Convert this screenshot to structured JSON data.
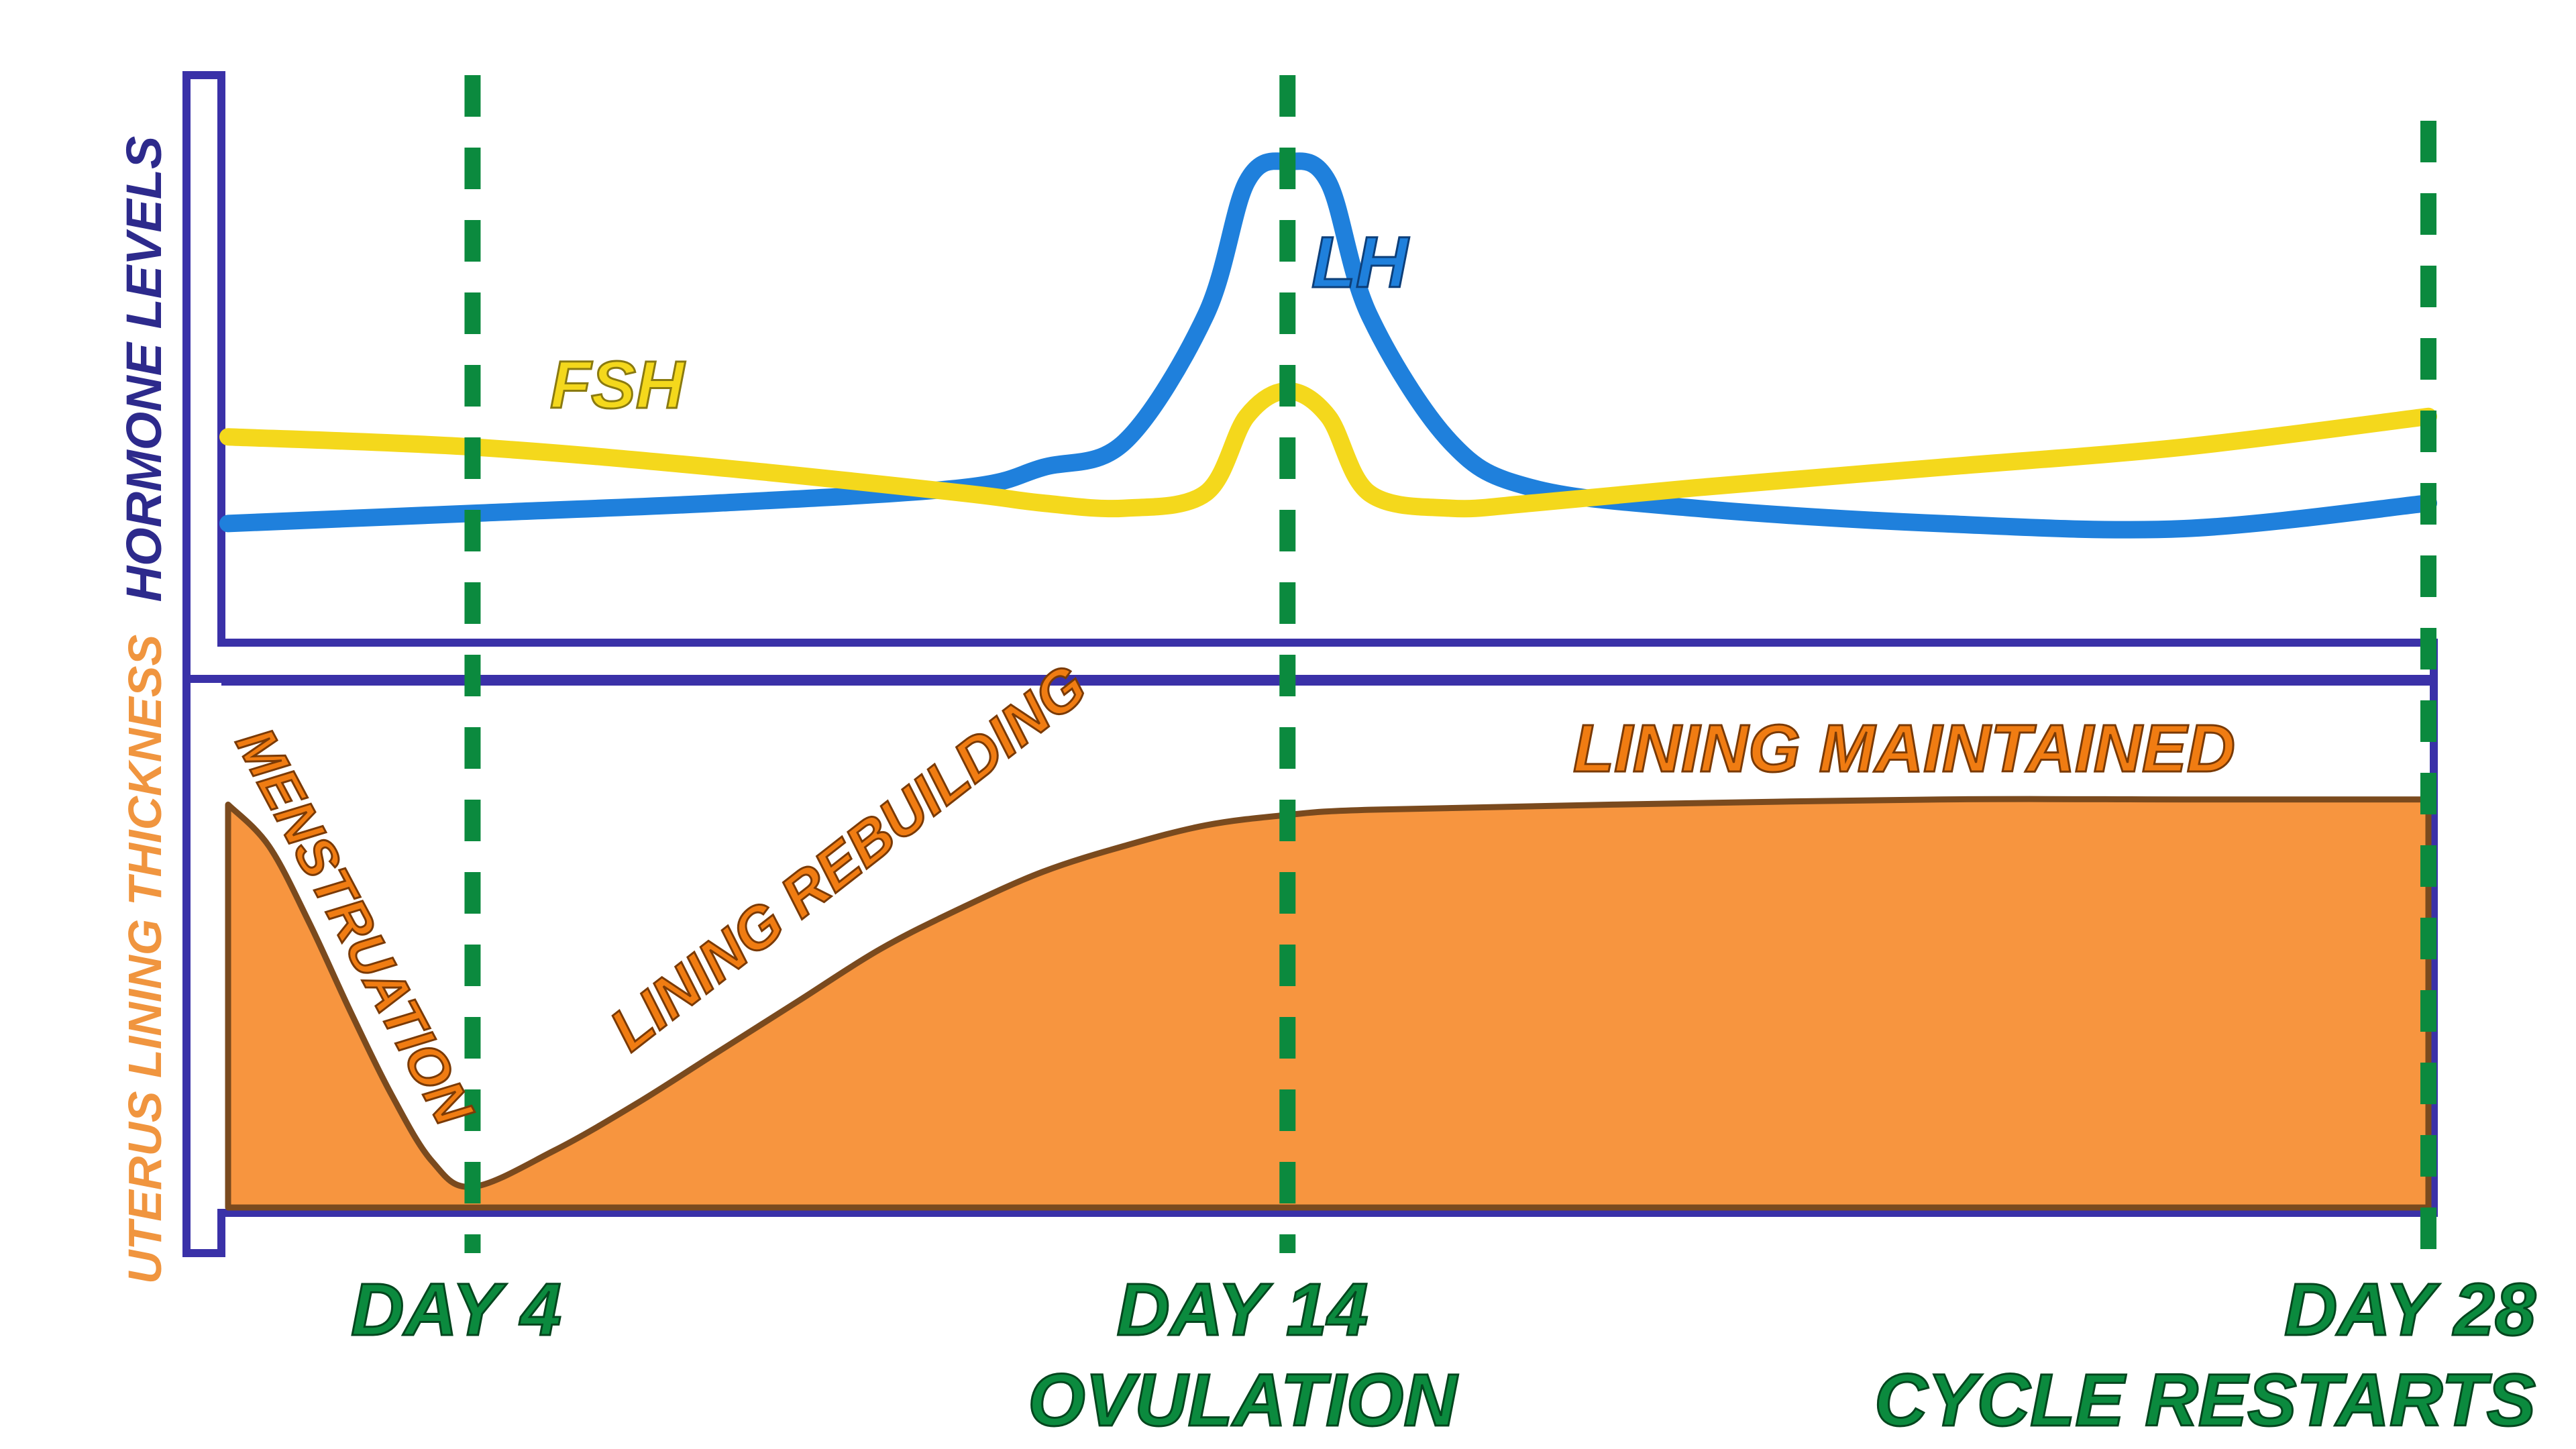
{
  "colors": {
    "frame": "#3a31a8",
    "lh": "#1f80dc",
    "fsh": "#f4d81c",
    "lining_fill": "#f7953f",
    "lining_stroke": "#7a4a1e",
    "day_line": "#0b8a3e",
    "hormone_axis_label": "#2d2a8c",
    "lining_axis_label": "#f0953f",
    "lh_label": "#1f80dc",
    "fsh_label": "#f4d81c",
    "phase_label": "#f07c12",
    "day_label": "#0b8a3e"
  },
  "chart_data": [
    {
      "type": "line",
      "ylabel": "HORMONE LEVELS",
      "xlim": [
        1,
        28
      ],
      "ylim": [
        0,
        100
      ],
      "series": [
        {
          "name": "LH",
          "x": [
            1,
            4,
            7,
            10,
            11,
            12,
            13,
            13.5,
            14,
            14.5,
            15,
            16,
            17,
            19,
            22,
            25,
            28
          ],
          "values": [
            21,
            23,
            25,
            28,
            32,
            37,
            62,
            88,
            92,
            88,
            62,
            37,
            28,
            24,
            21,
            20,
            25
          ]
        },
        {
          "name": "FSH",
          "x": [
            1,
            4,
            7,
            10,
            11,
            12,
            13,
            13.5,
            14,
            14.5,
            15,
            16,
            17,
            19,
            22,
            25,
            28
          ],
          "values": [
            38,
            36,
            32,
            27,
            25,
            24,
            27,
            42,
            47,
            42,
            27,
            24,
            25,
            28,
            32,
            36,
            42
          ]
        }
      ]
    },
    {
      "type": "area",
      "ylabel": "UTERUS LINING THICKNESS",
      "xlim": [
        1,
        28
      ],
      "ylim": [
        0,
        100
      ],
      "series": [
        {
          "name": "",
          "x": [
            1,
            1.5,
            2,
            2.5,
            3,
            3.5,
            4,
            5,
            6,
            7,
            8,
            9,
            10,
            11,
            12,
            13,
            14,
            15,
            18,
            22,
            25,
            28
          ],
          "values": [
            78,
            70,
            55,
            38,
            22,
            9,
            4,
            11,
            20,
            30,
            40,
            50,
            58,
            65,
            70,
            74,
            76,
            77,
            78,
            79,
            79,
            79
          ]
        }
      ]
    }
  ],
  "series_labels": {
    "lh": "LH",
    "fsh": "FSH"
  },
  "phase_labels": {
    "menstruation": "MENSTRUATION",
    "rebuilding": "LINING REBUILDING",
    "maintained": "LINING MAINTAINED"
  },
  "day_markers": [
    {
      "day": 4,
      "label": "DAY 4",
      "sublabel": ""
    },
    {
      "day": 14,
      "label": "DAY 14",
      "sublabel": "OVULATION"
    },
    {
      "day": 28,
      "label": "DAY 28",
      "sublabel": "CYCLE RESTARTS"
    }
  ]
}
